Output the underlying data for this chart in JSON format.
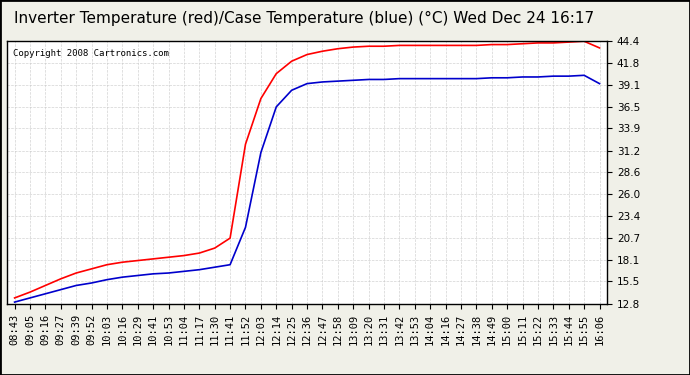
{
  "title": "Inverter Temperature (red)/Case Temperature (blue) (°C) Wed Dec 24 16:17",
  "copyright": "Copyright 2008 Cartronics.com",
  "x_labels": [
    "08:43",
    "09:05",
    "09:16",
    "09:27",
    "09:39",
    "09:52",
    "10:03",
    "10:16",
    "10:29",
    "10:41",
    "10:53",
    "11:04",
    "11:17",
    "11:30",
    "11:41",
    "11:52",
    "12:03",
    "12:14",
    "12:25",
    "12:36",
    "12:47",
    "12:58",
    "13:09",
    "13:20",
    "13:31",
    "13:42",
    "13:53",
    "14:04",
    "14:16",
    "14:27",
    "14:38",
    "14:49",
    "15:00",
    "15:11",
    "15:22",
    "15:33",
    "15:44",
    "15:55",
    "16:06"
  ],
  "y_ticks": [
    12.8,
    15.5,
    18.1,
    20.7,
    23.4,
    26.0,
    28.6,
    31.2,
    33.9,
    36.5,
    39.1,
    41.8,
    44.4
  ],
  "y_min": 12.8,
  "y_max": 44.4,
  "red_data": [
    13.5,
    14.2,
    15.0,
    15.8,
    16.5,
    17.0,
    17.5,
    17.8,
    18.0,
    18.2,
    18.4,
    18.6,
    18.9,
    19.5,
    20.7,
    32.0,
    37.5,
    40.5,
    42.0,
    42.8,
    43.2,
    43.5,
    43.7,
    43.8,
    43.8,
    43.9,
    43.9,
    43.9,
    43.9,
    43.9,
    43.9,
    44.0,
    44.0,
    44.1,
    44.2,
    44.2,
    44.3,
    44.4,
    43.6
  ],
  "blue_data": [
    13.0,
    13.5,
    14.0,
    14.5,
    15.0,
    15.3,
    15.7,
    16.0,
    16.2,
    16.4,
    16.5,
    16.7,
    16.9,
    17.2,
    17.5,
    22.0,
    31.0,
    36.5,
    38.5,
    39.3,
    39.5,
    39.6,
    39.7,
    39.8,
    39.8,
    39.9,
    39.9,
    39.9,
    39.9,
    39.9,
    39.9,
    40.0,
    40.0,
    40.1,
    40.1,
    40.2,
    40.2,
    40.3,
    39.3
  ],
  "bg_color": "#f0f0e8",
  "plot_bg_color": "#ffffff",
  "grid_color": "#c8c8c8",
  "red_color": "#ff0000",
  "blue_color": "#0000cc",
  "title_fontsize": 11,
  "tick_fontsize": 7.5
}
